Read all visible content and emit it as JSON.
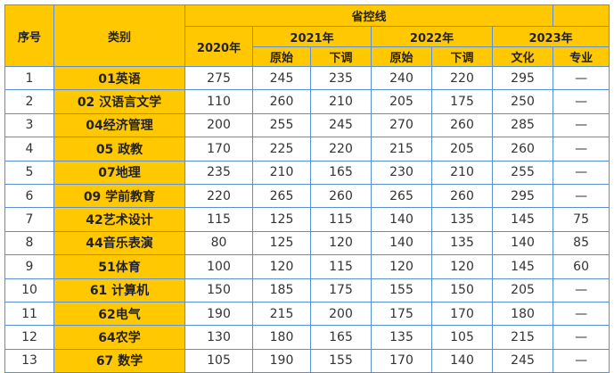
{
  "table": {
    "header": {
      "index_label": "序号",
      "category_label": "类别",
      "group_label": "省控线",
      "year_2020": "2020年",
      "year_2021": "2021年",
      "year_2022": "2022年",
      "year_2023": "2023年",
      "y2021_sub": [
        "原始",
        "下调"
      ],
      "y2022_sub": [
        "原始",
        "下调"
      ],
      "y2023_sub": [
        "文化",
        "专业"
      ]
    },
    "rows": [
      {
        "index": "1",
        "category": "01英语",
        "y2020": "275",
        "y2021_raw": "245",
        "y2021_adj": "235",
        "y2022_raw": "240",
        "y2022_adj": "220",
        "y2023_culture": "295",
        "y2023_major": "—"
      },
      {
        "index": "2",
        "category": "02 汉语言文学",
        "y2020": "110",
        "y2021_raw": "260",
        "y2021_adj": "210",
        "y2022_raw": "205",
        "y2022_adj": "175",
        "y2023_culture": "250",
        "y2023_major": "—"
      },
      {
        "index": "3",
        "category": "04经济管理",
        "y2020": "200",
        "y2021_raw": "255",
        "y2021_adj": "245",
        "y2022_raw": "270",
        "y2022_adj": "260",
        "y2023_culture": "285",
        "y2023_major": "—"
      },
      {
        "index": "4",
        "category": "05 政教",
        "y2020": "170",
        "y2021_raw": "225",
        "y2021_adj": "220",
        "y2022_raw": "215",
        "y2022_adj": "205",
        "y2023_culture": "260",
        "y2023_major": "—"
      },
      {
        "index": "5",
        "category": "07地理",
        "y2020": "235",
        "y2021_raw": "210",
        "y2021_adj": "165",
        "y2022_raw": "230",
        "y2022_adj": "210",
        "y2023_culture": "255",
        "y2023_major": "—"
      },
      {
        "index": "6",
        "category": "09 学前教育",
        "y2020": "220",
        "y2021_raw": "265",
        "y2021_adj": "260",
        "y2022_raw": "265",
        "y2022_adj": "260",
        "y2023_culture": "295",
        "y2023_major": "—"
      },
      {
        "index": "7",
        "category": "42艺术设计",
        "y2020": "115",
        "y2021_raw": "125",
        "y2021_adj": "115",
        "y2022_raw": "140",
        "y2022_adj": "135",
        "y2023_culture": "145",
        "y2023_major": "75"
      },
      {
        "index": "8",
        "category": "44音乐表演",
        "y2020": "80",
        "y2021_raw": "125",
        "y2021_adj": "120",
        "y2022_raw": "140",
        "y2022_adj": "135",
        "y2023_culture": "140",
        "y2023_major": "85"
      },
      {
        "index": "9",
        "category": "51体育",
        "y2020": "100",
        "y2021_raw": "120",
        "y2021_adj": "115",
        "y2022_raw": "120",
        "y2022_adj": "120",
        "y2023_culture": "145",
        "y2023_major": "60"
      },
      {
        "index": "10",
        "category": "61 计算机",
        "y2020": "150",
        "y2021_raw": "185",
        "y2021_adj": "175",
        "y2022_raw": "155",
        "y2022_adj": "150",
        "y2023_culture": "205",
        "y2023_major": "—"
      },
      {
        "index": "11",
        "category": "62电气",
        "y2020": "190",
        "y2021_raw": "215",
        "y2021_adj": "200",
        "y2022_raw": "175",
        "y2022_adj": "170",
        "y2023_culture": "180",
        "y2023_major": "—"
      },
      {
        "index": "12",
        "category": "64农学",
        "y2020": "130",
        "y2021_raw": "180",
        "y2021_adj": "165",
        "y2022_raw": "135",
        "y2022_adj": "105",
        "y2023_culture": "215",
        "y2023_major": "—"
      },
      {
        "index": "13",
        "category": "67 数学",
        "y2020": "105",
        "y2021_raw": "190",
        "y2021_adj": "155",
        "y2022_raw": "170",
        "y2022_adj": "140",
        "y2023_culture": "245",
        "y2023_major": "—"
      }
    ]
  },
  "colors": {
    "header_bg": "#ffc800",
    "category_bg": "#ffc800",
    "border": "#5b8fd4",
    "text": "#333333"
  }
}
